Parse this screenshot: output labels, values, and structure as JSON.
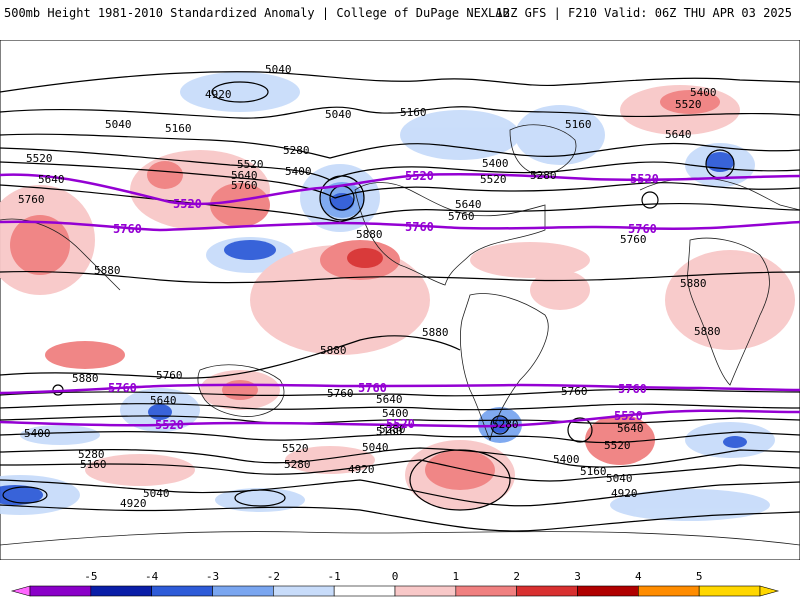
{
  "header": {
    "left_title": "500mb Height 1981-2010 Standardized Anomaly | College of DuPage NEXLAB",
    "right_title": "12Z GFS | F210 Valid: 06Z THU APR 03 2025"
  },
  "contour_labels": {
    "c5040": "5040",
    "c4920": "4920",
    "c5160": "5160",
    "c5280": "5280",
    "c5400": "5400",
    "c5520": "5520",
    "c5640": "5640",
    "c5760": "5760",
    "c5880": "5880"
  },
  "colorbar": {
    "ticks": [
      "-5",
      "-4",
      "-3",
      "-2",
      "-1",
      "0",
      "1",
      "2",
      "3",
      "4",
      "5"
    ],
    "colors": [
      "#ff66ff",
      "#8a00c8",
      "#0a1ea8",
      "#2e5bd8",
      "#7aa6f0",
      "#c8dcfa",
      "#ffffff",
      "#f8c8c8",
      "#f08080",
      "#d83030",
      "#b00000",
      "#ff8c00",
      "#ffd700"
    ]
  },
  "palette": {
    "reference_contour": "#9400d3",
    "contour": "#000000",
    "coast": "#202020"
  }
}
